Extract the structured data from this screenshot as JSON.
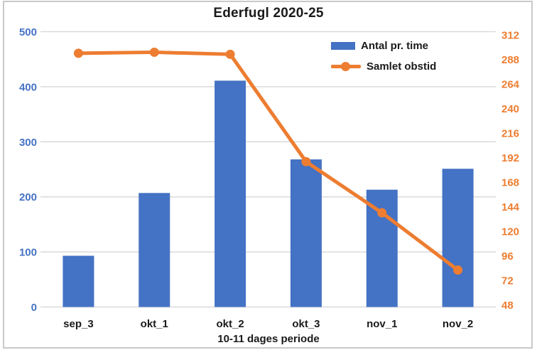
{
  "chart_data": {
    "type": "combo",
    "title": "Ederfugl 2020-25",
    "xlabel": "10-11 dages periode",
    "categories": [
      "sep_3",
      "okt_1",
      "okt_2",
      "okt_3",
      "nov_1",
      "nov_2"
    ],
    "series": [
      {
        "name": "Antal pr. time",
        "type": "bar",
        "axis": "left",
        "color": "#4472C4",
        "values": [
          93,
          207,
          411,
          268,
          213,
          251
        ]
      },
      {
        "name": "Samlet obstid",
        "type": "line",
        "axis": "right",
        "color": "#ED7D31",
        "values": [
          294,
          295,
          293,
          188,
          138,
          82
        ]
      }
    ],
    "left_axis": {
      "min": 0,
      "max": 500,
      "step": 100,
      "tick_labels": [
        "0",
        "100",
        "200",
        "300",
        "400",
        "500"
      ],
      "color": "#4472C4"
    },
    "right_axis": {
      "min": 48,
      "max": 312,
      "step": 24,
      "tick_labels": [
        "48",
        "72",
        "96",
        "120",
        "144",
        "168",
        "192",
        "216",
        "240",
        "264",
        "288",
        "312"
      ],
      "color": "#ED7D31"
    },
    "grid": true,
    "legend_position": "inside-top-right"
  },
  "colors": {
    "gridline": "#d9d9d9",
    "frame": "#c9c9c9",
    "text": "#1a1a1a"
  }
}
